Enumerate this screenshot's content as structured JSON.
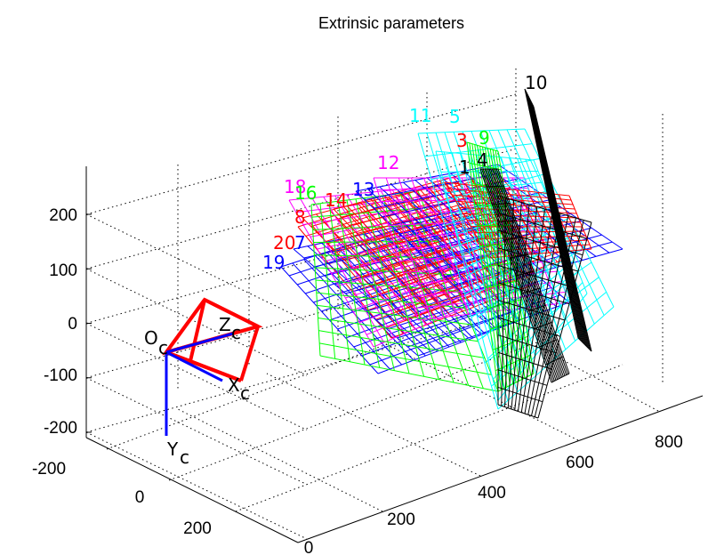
{
  "chart_data": {
    "type": "3d-mesh",
    "title": "Extrinsic parameters",
    "view": "camera-centered",
    "grid": true,
    "axes": {
      "x": {
        "ticks": [
          -200,
          0,
          200
        ],
        "tick_labels": [
          "-200",
          "0",
          "200"
        ]
      },
      "y": {
        "ticks": [
          0,
          200,
          400,
          600,
          800
        ],
        "tick_labels": [
          "0",
          "200",
          "400",
          "600",
          "800"
        ]
      },
      "z": {
        "ticks": [
          200,
          100,
          0,
          -100,
          -200
        ],
        "tick_labels": [
          "200",
          "100",
          "0",
          "-100",
          "-200"
        ]
      }
    },
    "camera": {
      "origin_label": "O",
      "origin_sub": "c",
      "axis_labels": [
        {
          "main": "X",
          "sub": "c"
        },
        {
          "main": "Y",
          "sub": "c"
        },
        {
          "main": "Z",
          "sub": "c"
        }
      ],
      "frustum_color": "#ff0000",
      "axes_color": "#0000ff"
    },
    "planes": [
      {
        "label": "19",
        "color": "#0000ff"
      },
      {
        "label": "20",
        "color": "#ff0000"
      },
      {
        "label": "7",
        "color": "#0000ff"
      },
      {
        "label": "8",
        "color": "#ff0000"
      },
      {
        "label": "18",
        "color": "#ff00ff"
      },
      {
        "label": "16",
        "color": "#00ff00"
      },
      {
        "label": "14",
        "color": "#ff0000"
      },
      {
        "label": "13",
        "color": "#0000ff"
      },
      {
        "label": "12",
        "color": "#ff00ff"
      },
      {
        "label": "11",
        "color": "#00ffff"
      },
      {
        "label": "5",
        "color": "#00ffff"
      },
      {
        "label": "3",
        "color": "#ff0000"
      },
      {
        "label": "9",
        "color": "#00ff00"
      },
      {
        "label": "1",
        "color": "#000000"
      },
      {
        "label": "4",
        "color": "#000000"
      },
      {
        "label": "10",
        "color": "#000000"
      }
    ]
  }
}
